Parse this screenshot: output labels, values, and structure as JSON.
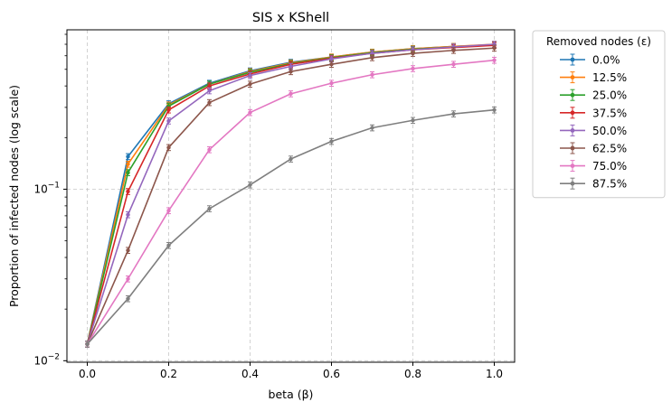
{
  "chart_data": {
    "type": "line",
    "title": "SIS x KShell",
    "xlabel": "beta (β)",
    "ylabel": "Proportion of infected nodes (log scale)",
    "yscale": "log",
    "xlim": [
      -0.05,
      1.05
    ],
    "ylim": [
      0.0098,
      0.85
    ],
    "grid": true,
    "x_ticks": [
      0.0,
      0.2,
      0.4,
      0.6,
      0.8,
      1.0
    ],
    "x_tick_labels": [
      "0.0",
      "0.2",
      "0.4",
      "0.6",
      "0.8",
      "1.0"
    ],
    "y_ticks": [
      0.01,
      0.1
    ],
    "x": [
      0.0,
      0.1,
      0.2,
      0.3,
      0.4,
      0.5,
      0.6,
      0.7,
      0.8,
      0.9,
      1.0
    ],
    "legend": {
      "title": "Removed nodes (ε)",
      "placement": "outside-right"
    },
    "series": [
      {
        "name": "0.0%",
        "color": "#1f77b4",
        "values": [
          0.0125,
          0.155,
          0.315,
          0.415,
          0.49,
          0.55,
          0.59,
          0.63,
          0.66,
          0.68,
          0.695
        ]
      },
      {
        "name": "12.5%",
        "color": "#ff7f0e",
        "values": [
          0.0125,
          0.14,
          0.31,
          0.41,
          0.485,
          0.545,
          0.59,
          0.63,
          0.66,
          0.68,
          0.7
        ]
      },
      {
        "name": "25.0%",
        "color": "#2ca02c",
        "values": [
          0.0125,
          0.125,
          0.305,
          0.41,
          0.48,
          0.54,
          0.585,
          0.625,
          0.655,
          0.675,
          0.695
        ]
      },
      {
        "name": "37.5%",
        "color": "#d62728",
        "values": [
          0.0125,
          0.097,
          0.29,
          0.4,
          0.47,
          0.535,
          0.58,
          0.62,
          0.65,
          0.67,
          0.69
        ]
      },
      {
        "name": "50.0%",
        "color": "#9467bd",
        "values": [
          0.0125,
          0.071,
          0.25,
          0.375,
          0.46,
          0.52,
          0.575,
          0.62,
          0.65,
          0.675,
          0.7
        ]
      },
      {
        "name": "62.5%",
        "color": "#8c564b",
        "values": [
          0.0125,
          0.044,
          0.175,
          0.32,
          0.41,
          0.485,
          0.535,
          0.585,
          0.62,
          0.645,
          0.665
        ]
      },
      {
        "name": "75.0%",
        "color": "#e377c2",
        "values": [
          0.0125,
          0.03,
          0.075,
          0.17,
          0.28,
          0.36,
          0.415,
          0.465,
          0.505,
          0.535,
          0.565
        ]
      },
      {
        "name": "87.5%",
        "color": "#7f7f7f",
        "values": [
          0.0125,
          0.023,
          0.047,
          0.077,
          0.106,
          0.15,
          0.19,
          0.228,
          0.252,
          0.275,
          0.29
        ]
      }
    ]
  }
}
